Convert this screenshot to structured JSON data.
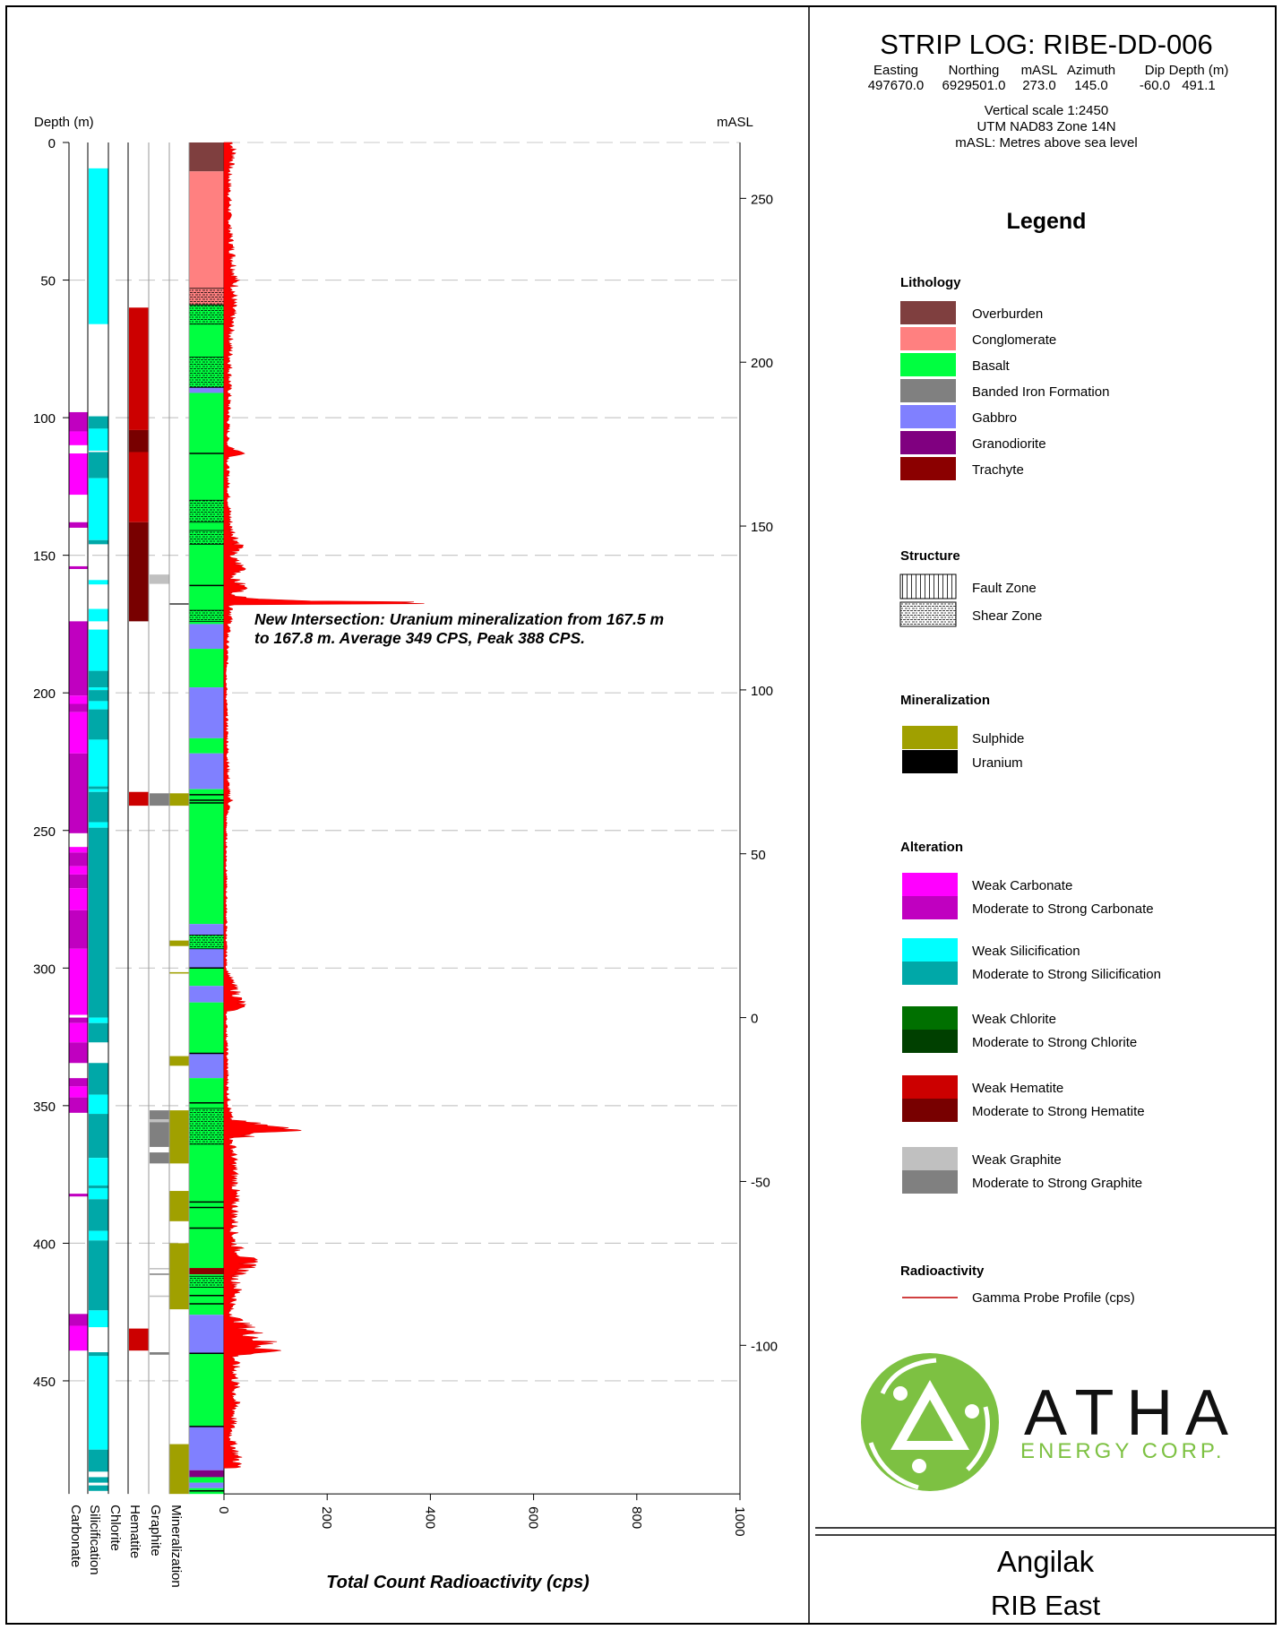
{
  "header": {
    "title": "STRIP LOG: RIBE-DD-006",
    "columns": [
      {
        "label": "Easting",
        "value": "497670.0"
      },
      {
        "label": "Northing",
        "value": "6929501.0"
      },
      {
        "label": "mASL",
        "value": "273.0"
      },
      {
        "label": "Azimuth",
        "value": "145.0"
      },
      {
        "label": "Dip",
        "value": "-60.0"
      },
      {
        "label": "Depth (m)",
        "value": "491.1"
      }
    ],
    "notes": [
      "Vertical scale 1:2450",
      "UTM NAD83 Zone 14N",
      "mASL: Metres above sea level"
    ]
  },
  "legend": {
    "title": "Legend",
    "lithology": {
      "title": "Lithology",
      "items": [
        {
          "code": "OB",
          "label": "Overburden",
          "color": "#7f3f3f"
        },
        {
          "code": "CG",
          "label": "Conglomerate",
          "color": "#ff8080"
        },
        {
          "code": "BA",
          "label": "Basalt",
          "color": "#00ff40"
        },
        {
          "code": "BIF",
          "label": "Banded Iron Formation",
          "color": "#808080"
        },
        {
          "code": "GB",
          "label": "Gabbro",
          "color": "#8080ff"
        },
        {
          "code": "GD",
          "label": "Granodiorite",
          "color": "#800080"
        },
        {
          "code": "TR",
          "label": "Trachyte",
          "color": "#8b0000"
        }
      ]
    },
    "structure": {
      "title": "Structure",
      "items": [
        {
          "code": "fault",
          "label": "Fault Zone"
        },
        {
          "code": "shear",
          "label": "Shear Zone"
        }
      ]
    },
    "mineralization": {
      "title": "Mineralization",
      "items": [
        {
          "code": "SU",
          "label": "Sulphide",
          "color": "#a0a000"
        },
        {
          "code": "U",
          "label": "Uranium",
          "color": "#000000"
        }
      ]
    },
    "alteration": {
      "title": "Alteration",
      "groups": [
        {
          "key": "carbonate",
          "weak": {
            "label": "Weak Carbonate",
            "color": "#ff00ff"
          },
          "strong": {
            "label": "Moderate to Strong Carbonate",
            "color": "#c000c0"
          }
        },
        {
          "key": "silicification",
          "weak": {
            "label": "Weak Silicification",
            "color": "#00ffff"
          },
          "strong": {
            "label": "Moderate to Strong Silicification",
            "color": "#00a8a8"
          }
        },
        {
          "key": "chlorite",
          "weak": {
            "label": "Weak Chlorite",
            "color": "#007000"
          },
          "strong": {
            "label": "Moderate to Strong Chlorite",
            "color": "#004000"
          }
        },
        {
          "key": "hematite",
          "weak": {
            "label": "Weak Hematite",
            "color": "#cc0000"
          },
          "strong": {
            "label": "Moderate to Strong Hematite",
            "color": "#780000"
          }
        },
        {
          "key": "graphite",
          "weak": {
            "label": "Weak Graphite",
            "color": "#c0c0c0"
          },
          "strong": {
            "label": "Moderate to Strong Graphite",
            "color": "#808080"
          }
        }
      ]
    },
    "radioactivity": {
      "title": "Radioactivity",
      "items": [
        {
          "label": "Gamma Probe Profile (cps)",
          "color": "#c00000"
        }
      ]
    }
  },
  "logo": {
    "name": "ATHA",
    "subtitle": "ENERGY CORP.",
    "color": "#7dc142"
  },
  "footer": {
    "project": "Angilak",
    "area": "RIB East"
  },
  "annotation": {
    "line1": "New Intersection: Uranium mineralization from 167.5 m",
    "line2": "to 167.8 m. Average 349 CPS, Peak 388 CPS."
  },
  "chart_data": {
    "type": "strip-log",
    "depth_label": "Depth (m)",
    "elevation_label": "mASL",
    "xlabel": "Total Count Radioactivity (cps)",
    "depth_range": [
      0,
      491.1
    ],
    "cps_range": [
      0,
      1000
    ],
    "depth_ticks": [
      0,
      50,
      100,
      150,
      200,
      250,
      300,
      350,
      400,
      450
    ],
    "masl_ticks": [
      250,
      200,
      150,
      100,
      50,
      0,
      -50,
      -100
    ],
    "cps_ticks": [
      0,
      200,
      400,
      600,
      800,
      1000
    ],
    "grid": "dashed every 50 m",
    "track_labels": [
      "Carbonate",
      "Silicification",
      "Chlorite",
      "Hematite",
      "Graphite",
      "Mineralization"
    ],
    "tracks": {
      "carbonate": [
        [
          98,
          105,
          "S"
        ],
        [
          105,
          110,
          "W"
        ],
        [
          113,
          128,
          "W"
        ],
        [
          138,
          140,
          "S"
        ],
        [
          154,
          155,
          "S"
        ],
        [
          174,
          201,
          "S"
        ],
        [
          201,
          204,
          "W"
        ],
        [
          204,
          207,
          "S"
        ],
        [
          207,
          222,
          "W"
        ],
        [
          222,
          251,
          "S"
        ],
        [
          256,
          258,
          "W"
        ],
        [
          258,
          263,
          "S"
        ],
        [
          263,
          266,
          "W"
        ],
        [
          266,
          271,
          "S"
        ],
        [
          271,
          279,
          "W"
        ],
        [
          279,
          293,
          "S"
        ],
        [
          293,
          317,
          "W"
        ],
        [
          318,
          320,
          "S"
        ],
        [
          320,
          327,
          "W"
        ],
        [
          327,
          334.5,
          "S"
        ],
        [
          340,
          343,
          "S"
        ],
        [
          343,
          347,
          "W"
        ],
        [
          347,
          352.6,
          "S"
        ],
        [
          382,
          383,
          "S"
        ],
        [
          425.7,
          430,
          "S"
        ],
        [
          430,
          439,
          "W"
        ]
      ],
      "silicification": [
        [
          9.4,
          66,
          "W"
        ],
        [
          99.5,
          104,
          "S"
        ],
        [
          104,
          112,
          "W"
        ],
        [
          112.5,
          122,
          "S"
        ],
        [
          122,
          144.5,
          "W"
        ],
        [
          144.5,
          146,
          "S"
        ],
        [
          159,
          160.6,
          "W"
        ],
        [
          169.5,
          174,
          "W"
        ],
        [
          177,
          192,
          "W"
        ],
        [
          192,
          198,
          "S"
        ],
        [
          198,
          199,
          "W"
        ],
        [
          199,
          203,
          "S"
        ],
        [
          203,
          206,
          "W"
        ],
        [
          206,
          217,
          "S"
        ],
        [
          217,
          234,
          "W"
        ],
        [
          234,
          235,
          "S"
        ],
        [
          235,
          236,
          "W"
        ],
        [
          236,
          247,
          "S"
        ],
        [
          247,
          249,
          "W"
        ],
        [
          249,
          318,
          "S"
        ],
        [
          318,
          320,
          "W"
        ],
        [
          320,
          327,
          "S"
        ],
        [
          334.5,
          346,
          "S"
        ],
        [
          346,
          353,
          "W"
        ],
        [
          353,
          369,
          "S"
        ],
        [
          369,
          379,
          "W"
        ],
        [
          379,
          380,
          "S"
        ],
        [
          380,
          384,
          "W"
        ],
        [
          384,
          395.5,
          "S"
        ],
        [
          395.5,
          399,
          "W"
        ],
        [
          399,
          424.4,
          "S"
        ],
        [
          424.4,
          430.5,
          "W"
        ],
        [
          439.6,
          441,
          "S"
        ],
        [
          441,
          475,
          "W"
        ],
        [
          475,
          483,
          "S"
        ],
        [
          485,
          487,
          "S"
        ],
        [
          488,
          490,
          "S"
        ]
      ],
      "chlorite": [],
      "hematite": [
        [
          60,
          104.5,
          "W"
        ],
        [
          104.5,
          112.5,
          "S"
        ],
        [
          112.5,
          138,
          "W"
        ],
        [
          138,
          174,
          "S"
        ],
        [
          236,
          241,
          "W"
        ],
        [
          431,
          439,
          "W"
        ]
      ],
      "graphite": [
        [
          157,
          160.4,
          "W"
        ],
        [
          236.5,
          241,
          "S"
        ],
        [
          351.7,
          355,
          "S"
        ],
        [
          355,
          356,
          "W"
        ],
        [
          356,
          365,
          "S"
        ],
        [
          367,
          371,
          "S"
        ],
        [
          409,
          409.5,
          "W"
        ],
        [
          411,
          411.5,
          "S"
        ],
        [
          419,
          419.5,
          "W"
        ],
        [
          439.6,
          440.5,
          "S"
        ]
      ],
      "mineralization": [
        [
          167.5,
          167.8,
          "U"
        ],
        [
          236.5,
          241,
          "SU"
        ],
        [
          290,
          292,
          "SU"
        ],
        [
          301.5,
          302,
          "SU"
        ],
        [
          332,
          335.5,
          "SU"
        ],
        [
          351.7,
          371,
          "SU"
        ],
        [
          381,
          392,
          "SU"
        ],
        [
          400,
          424,
          "SU"
        ],
        [
          473,
          491.1,
          "SU"
        ]
      ],
      "lithology": [
        [
          0,
          10.5,
          "OB"
        ],
        [
          10.5,
          59,
          "CG"
        ],
        [
          59,
          89,
          "BA"
        ],
        [
          89,
          91,
          "GB"
        ],
        [
          91,
          175,
          "BA"
        ],
        [
          175,
          184,
          "GB"
        ],
        [
          184,
          198,
          "BA"
        ],
        [
          198,
          216.5,
          "GB"
        ],
        [
          216.5,
          222,
          "BA"
        ],
        [
          222,
          235,
          "GB"
        ],
        [
          235,
          284,
          "BA"
        ],
        [
          284,
          288,
          "GB"
        ],
        [
          288,
          293,
          "BA"
        ],
        [
          293,
          300,
          "GB"
        ],
        [
          300,
          306.5,
          "BA"
        ],
        [
          306.5,
          312.5,
          "GB"
        ],
        [
          312.5,
          331,
          "BA"
        ],
        [
          331,
          340,
          "GB"
        ],
        [
          340,
          409,
          "BA"
        ],
        [
          409,
          411.3,
          "TR"
        ],
        [
          411.3,
          426,
          "BA"
        ],
        [
          426,
          440,
          "GB"
        ],
        [
          440,
          466.6,
          "BA"
        ],
        [
          466.6,
          482.5,
          "GB"
        ],
        [
          482.5,
          485,
          "GD"
        ],
        [
          485,
          487,
          "BA"
        ],
        [
          487,
          489,
          "GB"
        ],
        [
          489,
          491.1,
          "BA"
        ]
      ],
      "structure": [
        [
          53,
          59,
          "shear"
        ],
        [
          59,
          66,
          "shear"
        ],
        [
          78,
          89,
          "shear"
        ],
        [
          130,
          138,
          "shear"
        ],
        [
          141,
          146,
          "shear"
        ],
        [
          170,
          174,
          "shear"
        ],
        [
          288,
          293,
          "shear"
        ],
        [
          351,
          364,
          "shear"
        ],
        [
          412,
          416,
          "shear"
        ]
      ],
      "contacts": [
        113,
        161,
        237,
        239,
        240,
        300,
        331,
        349,
        385,
        387,
        394.5,
        419,
        422,
        440,
        466.6,
        490
      ]
    },
    "gamma_profile": {
      "name": "Gamma Probe Profile (cps)",
      "depth": [
        0,
        5,
        10,
        30,
        50,
        55,
        60,
        70,
        90,
        110,
        113,
        115,
        130,
        140,
        147,
        150,
        155,
        158,
        162,
        165,
        167.6,
        168,
        172,
        180,
        200,
        237,
        239,
        245,
        300,
        314,
        316,
        345,
        355,
        359,
        362,
        365,
        380,
        400,
        408,
        412,
        418,
        425,
        439,
        441,
        460,
        470,
        478,
        481.7
      ],
      "cps": [
        18,
        22,
        12,
        12,
        25,
        22,
        20,
        15,
        12,
        8,
        40,
        8,
        10,
        15,
        37,
        15,
        42,
        20,
        45,
        15,
        388,
        20,
        15,
        8,
        5,
        10,
        15,
        5,
        5,
        40,
        5,
        8,
        15,
        150,
        15,
        20,
        25,
        22,
        62,
        25,
        30,
        12,
        110,
        25,
        25,
        15,
        30,
        30
      ]
    }
  }
}
